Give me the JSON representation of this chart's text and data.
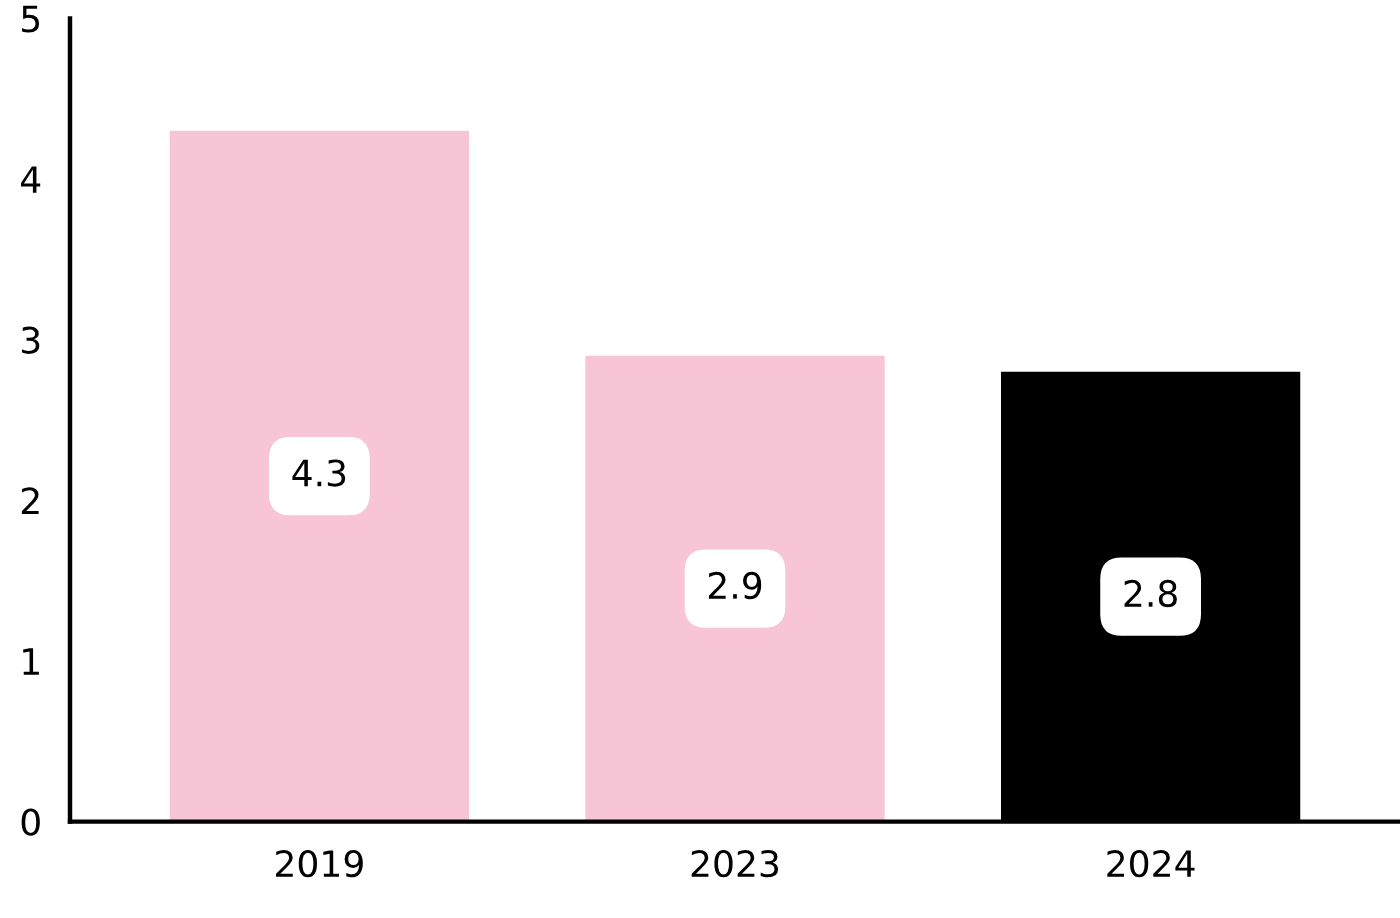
{
  "chart_data": {
    "type": "bar",
    "categories": [
      "2019",
      "2023",
      "2024"
    ],
    "values": [
      4.3,
      2.9,
      2.8
    ],
    "colors": [
      "#f7c5d5",
      "#f7c5d5",
      "#000000"
    ],
    "ylim": [
      0,
      5
    ],
    "yticks": [
      0,
      1,
      2,
      3,
      4,
      5
    ],
    "grid": false,
    "data_labels": true
  }
}
